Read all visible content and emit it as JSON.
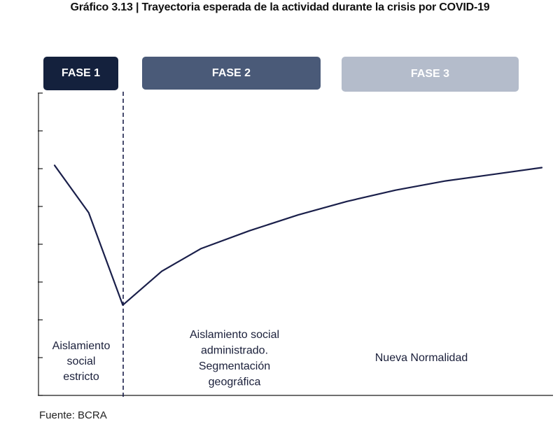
{
  "title": "Gráfico 3.13 | Trayectoria esperada de la actividad durante la crisis por COVID-19",
  "source": "Fuente: BCRA",
  "colors": {
    "phase_1": "#14213d",
    "phase_2": "#4a5a78",
    "phase_3": "#b4bccb",
    "line": "#1a1f4a",
    "axis": "#1a1a1a",
    "divider": "#1a1f4a"
  },
  "phases": [
    {
      "label": "FASE 1",
      "text_lines": [
        "Aislamiento",
        "social",
        "estricto"
      ]
    },
    {
      "label": "FASE 2",
      "text_lines": [
        "Aislamiento social",
        "administrado.",
        "Segmentación",
        "geográfica"
      ]
    },
    {
      "label": "FASE 3",
      "text_lines": [
        "Nueva Normalidad"
      ]
    }
  ],
  "chart_data": {
    "type": "line",
    "title": "Gráfico 3.13 | Trayectoria esperada de la actividad durante la crisis por COVID-19",
    "xlabel": "",
    "ylabel": "",
    "y_tick_labels": "none",
    "grid": false,
    "legend": "none",
    "xlim": [
      0,
      100
    ],
    "ylim": [
      0,
      100
    ],
    "y_tick_count": 7,
    "phase_boundary_x": 14,
    "series": [
      {
        "x": [
          0,
          7,
          14,
          22,
          30,
          40,
          50,
          60,
          70,
          80,
          90,
          100
        ],
        "y": [
          85,
          64,
          23,
          38,
          48,
          56,
          63,
          69,
          74,
          78,
          81,
          84
        ]
      }
    ]
  }
}
